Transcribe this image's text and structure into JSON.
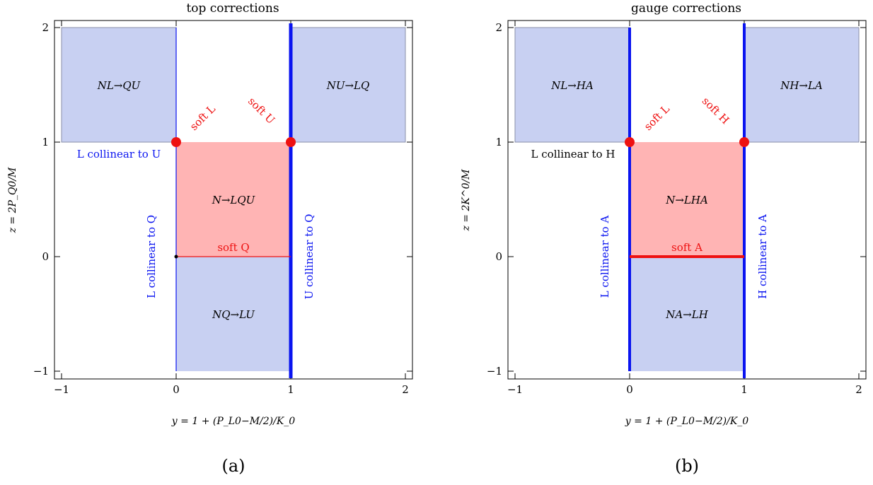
{
  "panels": [
    {
      "title": "top corrections",
      "xlabel": "y = 1 + (P_L0−M/2)/K_0",
      "ylabel": "z = 2P_Q0/M",
      "caption": "(a)",
      "xticks": [
        "−1",
        "0",
        "1",
        "2"
      ],
      "yticks": [
        "−1",
        "0",
        "1",
        "2"
      ],
      "regions": {
        "top_left": "NL→QU",
        "top_right": "NU→LQ",
        "center": "N→LQU",
        "bottom": "NQ→LU"
      },
      "annotations": {
        "soft_left": "soft L",
        "soft_right": "soft U",
        "soft_bottom": "soft Q",
        "collinear_top": "L collinear to U",
        "collinear_left": "L collinear to Q",
        "collinear_right": "U collinear to Q"
      }
    },
    {
      "title": "gauge corrections",
      "xlabel": "y = 1 + (P_L0−M/2)/K_0",
      "ylabel": "z = 2K^0/M",
      "caption": "(b)",
      "xticks": [
        "−1",
        "0",
        "1",
        "2"
      ],
      "yticks": [
        "−1",
        "0",
        "1",
        "2"
      ],
      "regions": {
        "top_left": "NL→HA",
        "top_right": "NH→LA",
        "center": "N→LHA",
        "bottom": "NA→LH"
      },
      "annotations": {
        "soft_left": "soft L",
        "soft_right": "soft H",
        "soft_bottom": "soft A",
        "collinear_top": "L collinear to H",
        "collinear_left": "L collinear to A",
        "collinear_right": "H collinear to A"
      }
    }
  ],
  "colors": {
    "blue_region": "#c8d0f2",
    "pink_region": "#ffb4b4",
    "blue_line": "#0a14f0",
    "red": "#ee1111"
  }
}
